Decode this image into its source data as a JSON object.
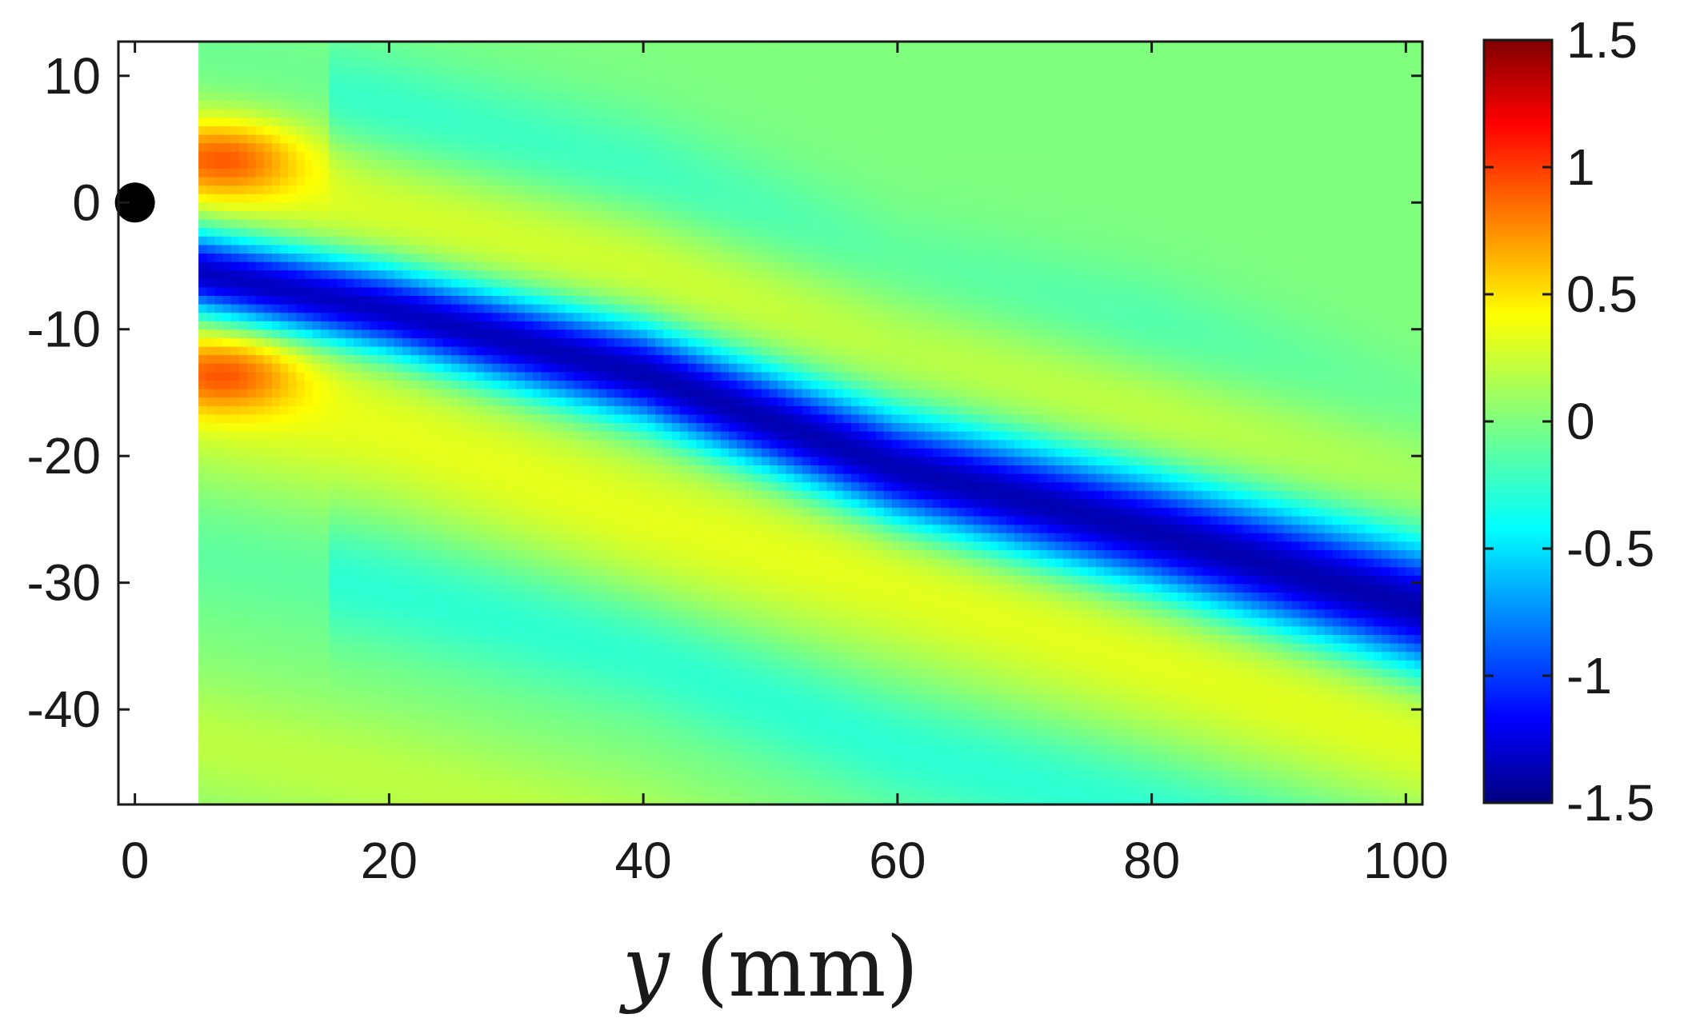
{
  "chart_data": {
    "type": "heatmap",
    "title": "",
    "xlabel_var": "y",
    "xlabel_unit": "(mm)",
    "ylabel": "",
    "xlim": [
      -1.3,
      101.3
    ],
    "ylim": [
      -47.5,
      12.7
    ],
    "x_ticks": [
      0,
      20,
      40,
      60,
      80,
      100
    ],
    "x_tick_labels": [
      "0",
      "20",
      "40",
      "60",
      "80",
      "100"
    ],
    "y_ticks": [
      10,
      0,
      -10,
      -20,
      -30,
      -40
    ],
    "y_tick_labels": [
      "10",
      "0",
      "-10",
      "-20",
      "-30",
      "-40"
    ],
    "data_extent": {
      "x": [
        5,
        101.3
      ],
      "y": [
        -47.5,
        12.7
      ]
    },
    "colormap": "jet",
    "clim": [
      -1.5,
      1.5
    ],
    "colorbar_ticks": [
      1.5,
      1,
      0.5,
      0,
      -0.5,
      -1,
      -1.5
    ],
    "colorbar_tick_labels": [
      "1.5",
      "1",
      "0.5",
      "0",
      "-0.5",
      "-1",
      "-1.5"
    ],
    "colorbar_position": "right",
    "marker": {
      "x": 0,
      "y": 0,
      "color": "#000000"
    },
    "features": [
      {
        "kind": "trough",
        "amplitude": -1.4,
        "centerline": [
          [
            5,
            -5.5
          ],
          [
            20,
            -8.5
          ],
          [
            40,
            -13.5
          ],
          [
            60,
            -21
          ],
          [
            80,
            -26
          ],
          [
            101,
            -32
          ]
        ]
      },
      {
        "kind": "crest",
        "amplitude": 0.3,
        "centerline": [
          [
            5,
            3
          ],
          [
            20,
            0
          ],
          [
            40,
            -4
          ],
          [
            60,
            -9
          ],
          [
            80,
            -15
          ],
          [
            101,
            -19
          ]
        ]
      },
      {
        "kind": "crest",
        "amplitude": 0.3,
        "centerline": [
          [
            5,
            -15
          ],
          [
            20,
            -18
          ],
          [
            40,
            -25
          ],
          [
            60,
            -30
          ],
          [
            80,
            -36
          ],
          [
            101,
            -42
          ]
        ]
      },
      {
        "kind": "hotspot",
        "x": 7,
        "y": 3.5,
        "amplitude": 0.6
      },
      {
        "kind": "hotspot",
        "x": 7,
        "y": -13.5,
        "amplitude": 0.6
      }
    ]
  }
}
